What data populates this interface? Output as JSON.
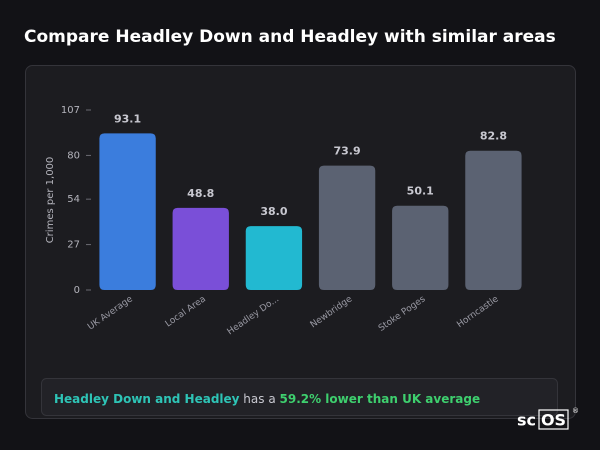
{
  "chart_data": {
    "type": "bar",
    "title": "Compare Headley Down and Headley with similar areas",
    "y_label": "Crimes per 1,000",
    "categories": [
      "UK Average",
      "Local Area",
      "Headley Do...",
      "Newbridge",
      "Stoke Poges",
      "Horncastle"
    ],
    "values": [
      93.1,
      48.8,
      38.0,
      73.9,
      50.1,
      82.8
    ],
    "value_labels": [
      "93.1",
      "48.8",
      "38.0",
      "73.9",
      "50.1",
      "82.8"
    ],
    "colors": [
      "#3b7ddd",
      "#7a4fd8",
      "#22b9d1",
      "#5b6272",
      "#5b6272",
      "#5b6272"
    ],
    "ylim": [
      0,
      107
    ],
    "yticks": [
      0,
      27,
      54,
      80,
      107
    ],
    "grid": false
  },
  "note": {
    "area": "Headley Down and Headley",
    "middle": " has a ",
    "comparison": "59.2% lower than UK average"
  },
  "logo": {
    "left": "sc",
    "boxed": "OS",
    "mark": "®"
  }
}
